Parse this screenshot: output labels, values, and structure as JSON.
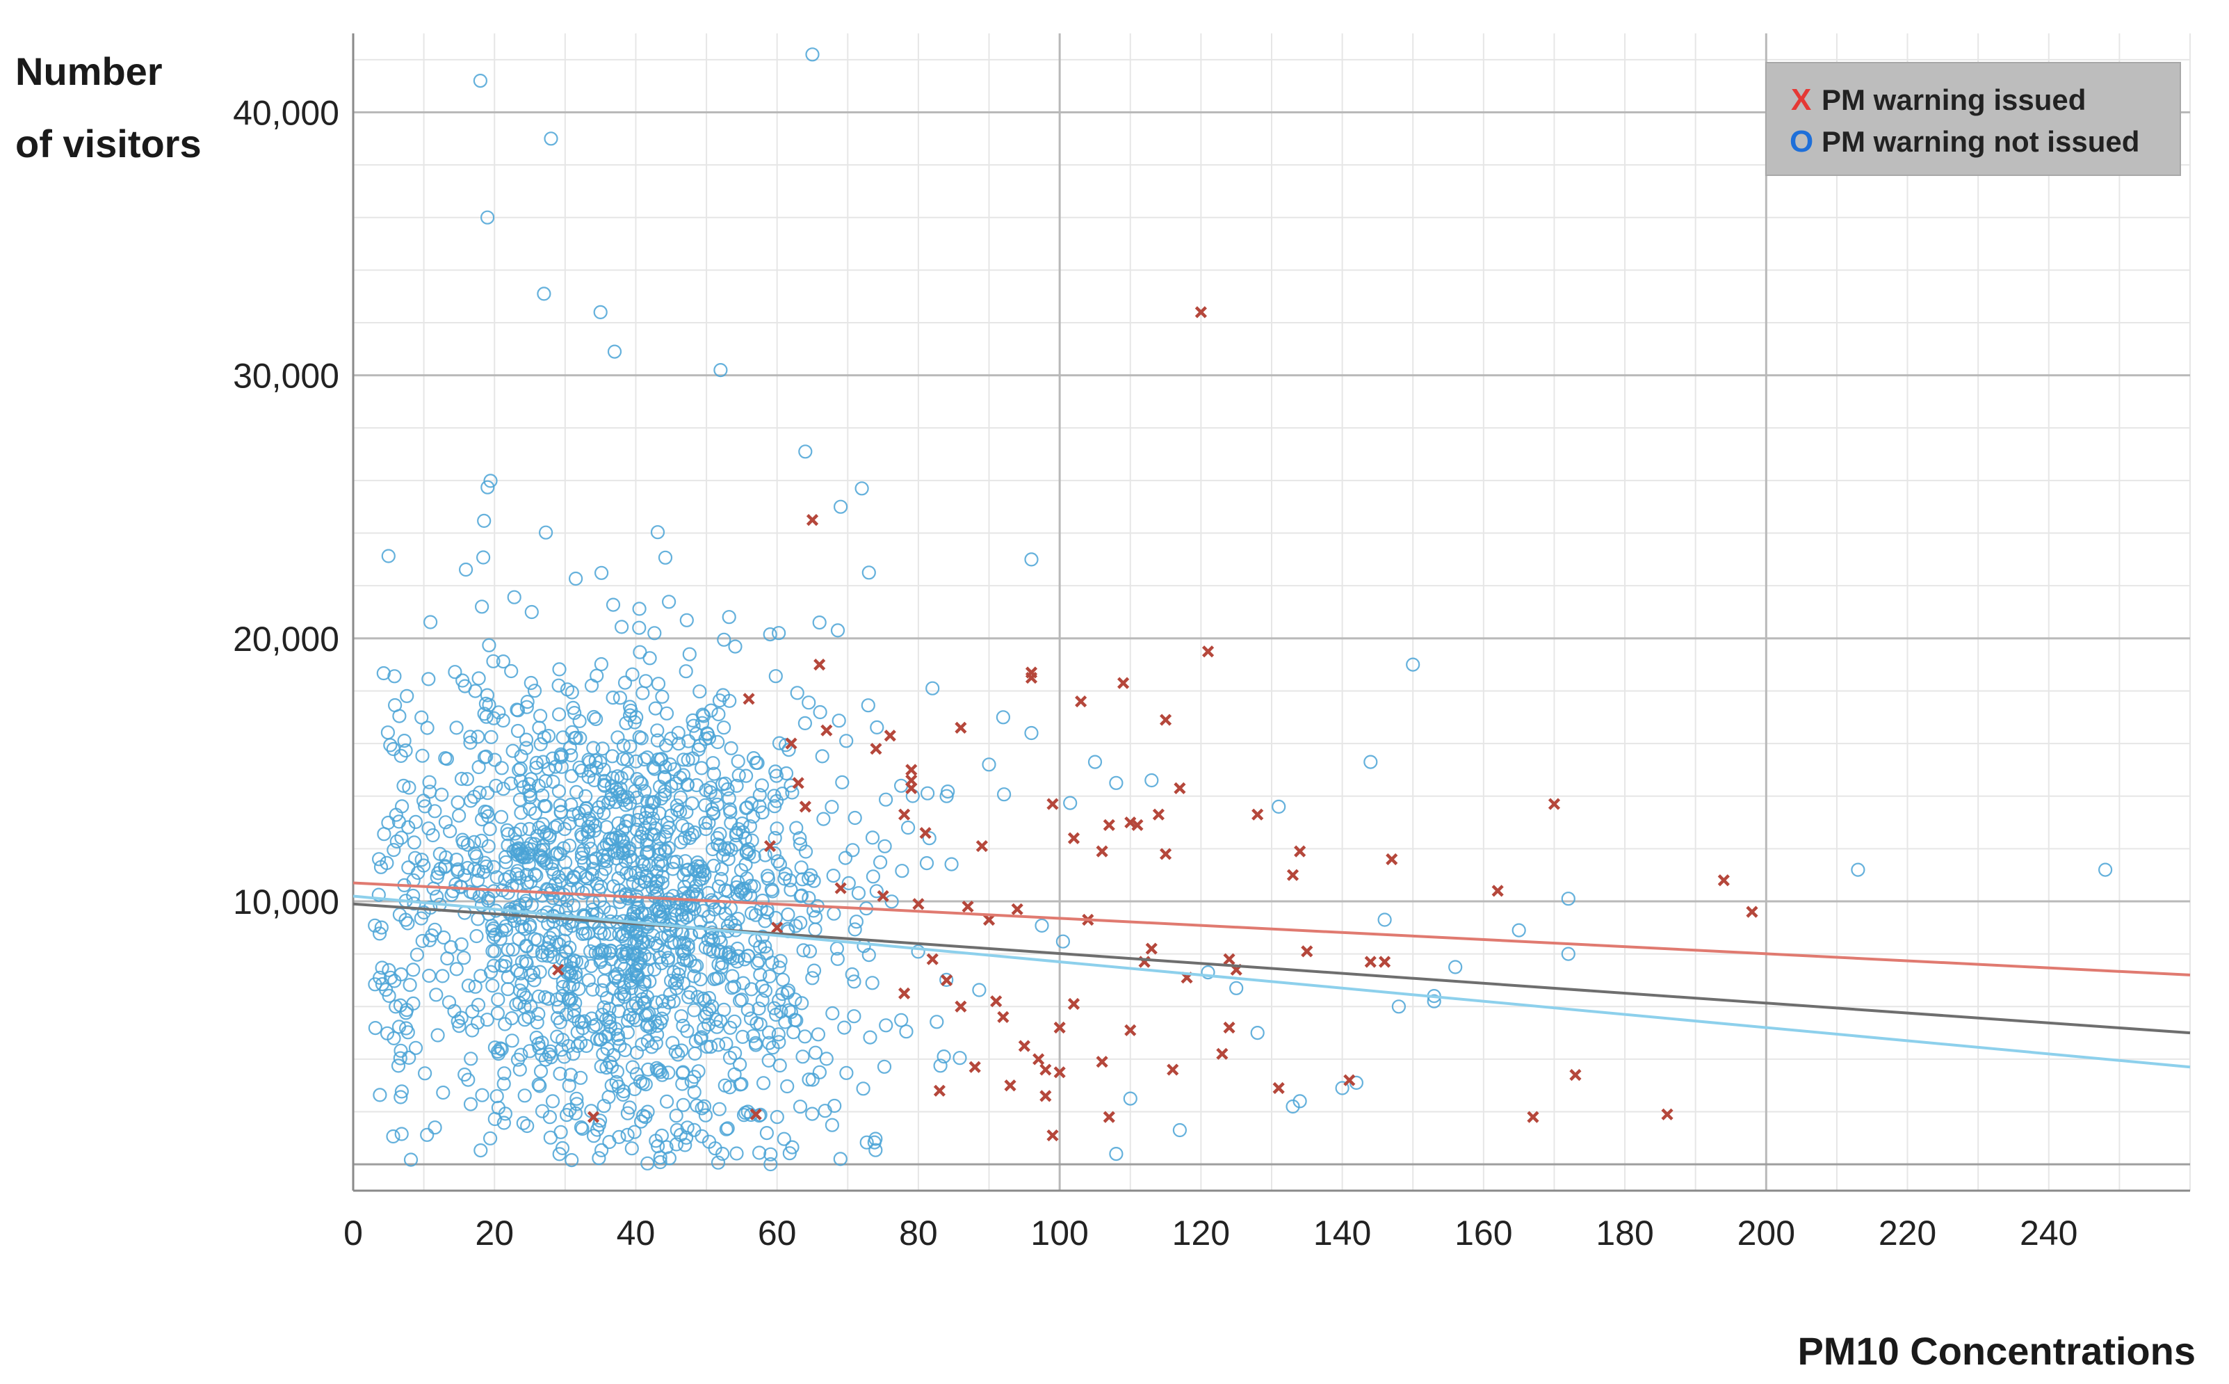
{
  "chart_data": {
    "type": "scatter",
    "title": "",
    "xlabel": "PM10 Concentrations",
    "ylabel_lines": [
      "Number",
      "of visitors"
    ],
    "xlim": [
      0,
      260
    ],
    "ylim": [
      -1000,
      43000
    ],
    "x_ticks": [
      0,
      20,
      40,
      60,
      80,
      100,
      120,
      140,
      160,
      180,
      200,
      220,
      240
    ],
    "x_tick_labels": [
      "0",
      "20",
      "40",
      "60",
      "80",
      "100",
      "120",
      "140",
      "160",
      "180",
      "200",
      "220",
      "240"
    ],
    "y_ticks": [
      10000,
      20000,
      30000,
      40000
    ],
    "y_tick_labels": [
      "10,000",
      "20,000",
      "30,000",
      "40,000"
    ],
    "grid": true,
    "legend_position": "top-right",
    "legend": [
      {
        "symbol": "X",
        "label": "PM warning issued",
        "color": "#e53935"
      },
      {
        "symbol": "O",
        "label": "PM warning not issued",
        "color": "#1e6fd9"
      }
    ],
    "series": [
      {
        "name": "PM warning issued",
        "marker": "x",
        "color": "#b5473b",
        "points": [
          [
            29,
            7400
          ],
          [
            34,
            1800
          ],
          [
            56,
            17700
          ],
          [
            57,
            1900
          ],
          [
            59,
            12100
          ],
          [
            60,
            9000
          ],
          [
            62,
            16000
          ],
          [
            63,
            14500
          ],
          [
            64,
            13600
          ],
          [
            65,
            24500
          ],
          [
            66,
            19000
          ],
          [
            67,
            16500
          ],
          [
            69,
            10500
          ],
          [
            74,
            15800
          ],
          [
            75,
            10200
          ],
          [
            76,
            16300
          ],
          [
            78,
            13300
          ],
          [
            78,
            6500
          ],
          [
            79,
            15000
          ],
          [
            79,
            14600
          ],
          [
            79,
            14300
          ],
          [
            80,
            9900
          ],
          [
            81,
            12600
          ],
          [
            82,
            7800
          ],
          [
            83,
            2800
          ],
          [
            84,
            7000
          ],
          [
            86,
            16600
          ],
          [
            86,
            6000
          ],
          [
            87,
            9800
          ],
          [
            88,
            3700
          ],
          [
            89,
            12100
          ],
          [
            90,
            9300
          ],
          [
            91,
            6200
          ],
          [
            92,
            5600
          ],
          [
            93,
            3000
          ],
          [
            94,
            9700
          ],
          [
            95,
            4500
          ],
          [
            96,
            18500
          ],
          [
            96,
            18700
          ],
          [
            97,
            4000
          ],
          [
            98,
            3600
          ],
          [
            98,
            2600
          ],
          [
            99,
            1100
          ],
          [
            99,
            13700
          ],
          [
            100,
            5200
          ],
          [
            100,
            3500
          ],
          [
            102,
            6100
          ],
          [
            102,
            12400
          ],
          [
            103,
            17600
          ],
          [
            104,
            9300
          ],
          [
            106,
            3900
          ],
          [
            106,
            11900
          ],
          [
            107,
            12900
          ],
          [
            107,
            1800
          ],
          [
            109,
            18300
          ],
          [
            110,
            5100
          ],
          [
            110,
            13000
          ],
          [
            111,
            12900
          ],
          [
            112,
            7700
          ],
          [
            113,
            8200
          ],
          [
            114,
            13300
          ],
          [
            115,
            16900
          ],
          [
            115,
            11800
          ],
          [
            116,
            3600
          ],
          [
            117,
            14300
          ],
          [
            118,
            7100
          ],
          [
            120,
            32400
          ],
          [
            121,
            19500
          ],
          [
            123,
            4200
          ],
          [
            124,
            5200
          ],
          [
            124,
            7800
          ],
          [
            125,
            7400
          ],
          [
            128,
            13300
          ],
          [
            131,
            2900
          ],
          [
            133,
            11000
          ],
          [
            134,
            11900
          ],
          [
            135,
            8100
          ],
          [
            141,
            3200
          ],
          [
            144,
            7700
          ],
          [
            146,
            7700
          ],
          [
            147,
            11600
          ],
          [
            162,
            10400
          ],
          [
            167,
            1800
          ],
          [
            170,
            13700
          ],
          [
            173,
            3400
          ],
          [
            186,
            1900
          ],
          [
            194,
            10800
          ],
          [
            198,
            9600
          ]
        ]
      },
      {
        "name": "PM warning not issued",
        "marker": "o",
        "color": "#4aa3d6",
        "generator": {
          "seed": 20240517,
          "count": 1650,
          "x_mean": 38,
          "x_sd": 17,
          "y_mean": 9500,
          "y_sd": 4600,
          "outliers": [
            [
              18,
              41200
            ],
            [
              19,
              36000
            ],
            [
              28,
              39000
            ],
            [
              65,
              42200
            ],
            [
              27,
              33100
            ],
            [
              35,
              32400
            ],
            [
              37,
              30900
            ],
            [
              52,
              30200
            ],
            [
              96,
              23000
            ],
            [
              150,
              19000
            ],
            [
              213,
              11200
            ],
            [
              248,
              11200
            ],
            [
              144,
              15300
            ],
            [
              131,
              13600
            ],
            [
              172,
              10100
            ],
            [
              165,
              8900
            ],
            [
              153,
              6400
            ],
            [
              172,
              8000
            ],
            [
              134,
              2400
            ],
            [
              142,
              3100
            ],
            [
              146,
              9300
            ],
            [
              148,
              6000
            ],
            [
              108,
              400
            ],
            [
              110,
              2500
            ],
            [
              117,
              1300
            ],
            [
              121,
              7300
            ],
            [
              125,
              6700
            ],
            [
              128,
              5000
            ],
            [
              153,
              6200
            ],
            [
              133,
              2200
            ],
            [
              140,
              2900
            ],
            [
              156,
              7500
            ],
            [
              92,
              17000
            ],
            [
              90,
              15200
            ],
            [
              105,
              15300
            ],
            [
              108,
              14500
            ],
            [
              96,
              16400
            ],
            [
              113,
              14600
            ],
            [
              64,
              27100
            ],
            [
              69,
              25000
            ],
            [
              72,
              25700
            ],
            [
              73,
              22500
            ],
            [
              66,
              20600
            ],
            [
              82,
              18100
            ],
            [
              84,
              14000
            ]
          ]
        }
      }
    ],
    "trend_lines": [
      {
        "name": "PM warning issued fit",
        "color": "#e07a70",
        "x": [
          0,
          260
        ],
        "y": [
          10700,
          7200
        ]
      },
      {
        "name": "overall fit",
        "color": "#6e6e6e",
        "x": [
          0,
          260
        ],
        "y": [
          9900,
          5000
        ]
      },
      {
        "name": "PM warning not issued fit",
        "color": "#8dd0ec",
        "x": [
          0,
          260
        ],
        "y": [
          10200,
          3700
        ]
      }
    ]
  }
}
